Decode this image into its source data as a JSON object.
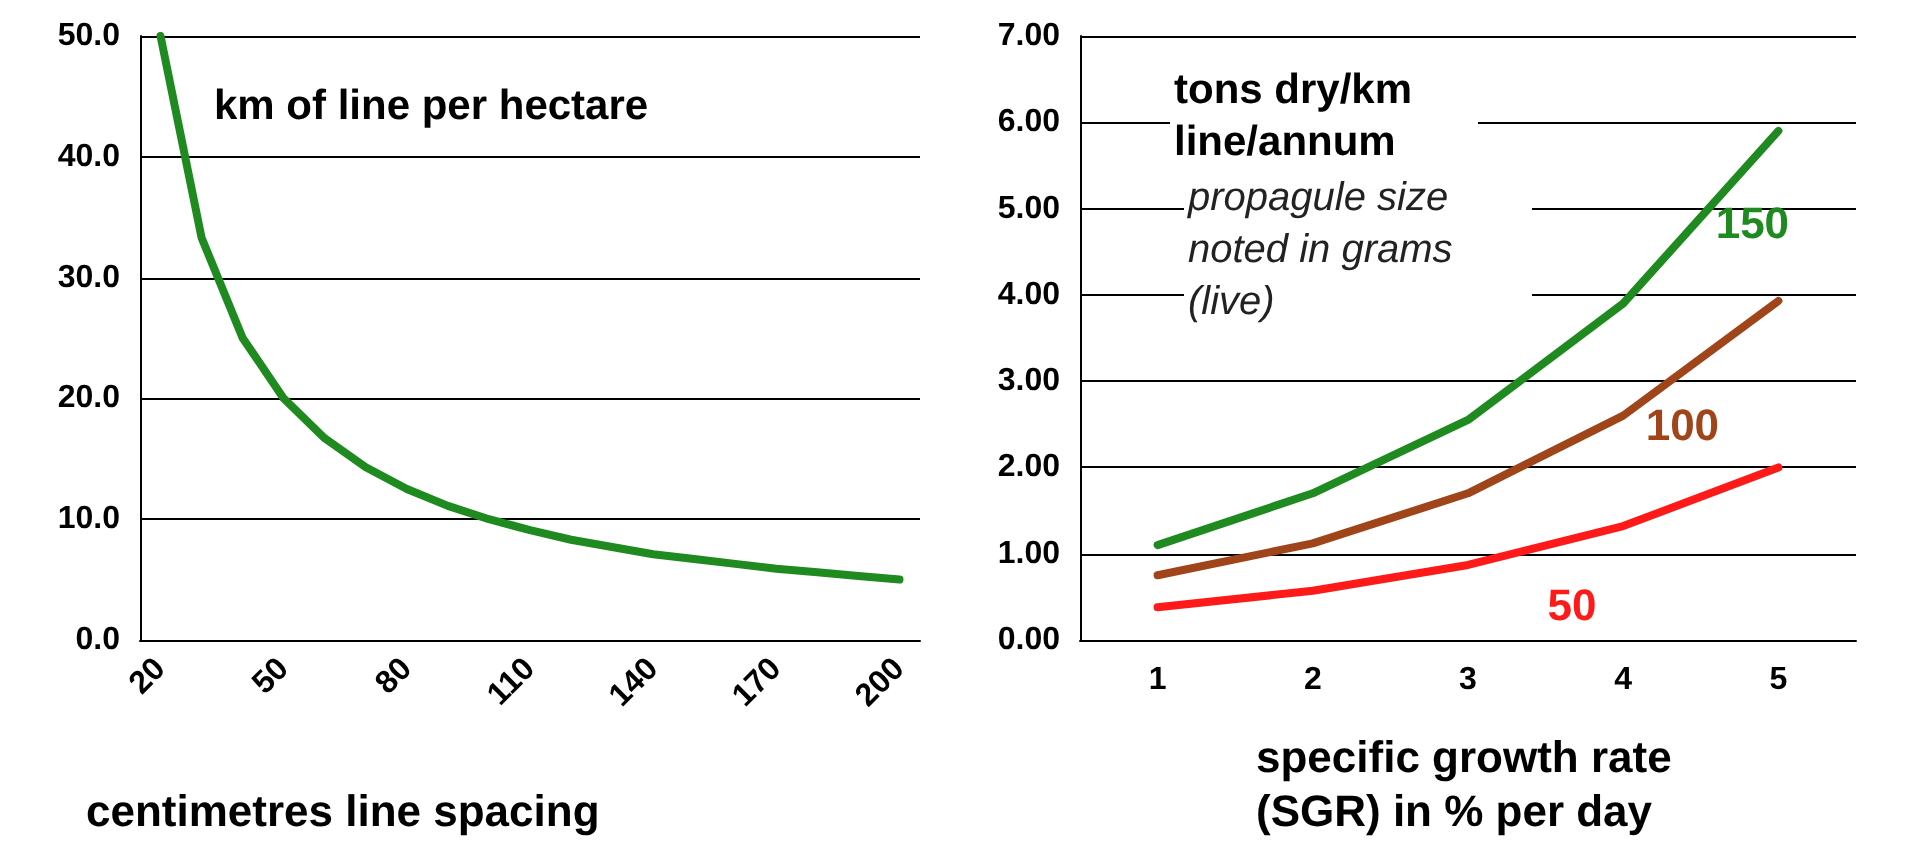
{
  "chart_data": [
    {
      "type": "line",
      "title": "km of line per hectare",
      "xlabel": "centimetres line spacing",
      "categories": [
        "20",
        null,
        null,
        "50",
        null,
        null,
        "80",
        null,
        null,
        "110",
        null,
        null,
        "140",
        null,
        null,
        "170",
        null,
        null,
        "200"
      ],
      "series": [
        {
          "color": "#1f8a1f",
          "values": [
            50,
            33.3,
            25,
            20,
            16.7,
            14.3,
            12.5,
            11.1,
            10,
            9.1,
            8.3,
            7.7,
            7.1,
            6.7,
            6.3,
            5.9,
            5.6,
            5.3,
            5
          ]
        }
      ],
      "ylim": [
        0,
        50
      ],
      "yticks": [
        {
          "value": 0,
          "label": "0.0"
        },
        {
          "value": 10,
          "label": "10.0"
        },
        {
          "value": 20,
          "label": "20.0"
        },
        {
          "value": 30,
          "label": "30.0"
        },
        {
          "value": 40,
          "label": "40.0"
        },
        {
          "value": 50,
          "label": "50.0"
        }
      ],
      "grid": "y",
      "marker": "none",
      "line_style": "solid"
    },
    {
      "type": "line",
      "title": "tons dry/km line/annum",
      "xlabel": "specific growth rate (SGR) in % per day",
      "annotations": [
        "propagule size noted in grams (live)"
      ],
      "categories": [
        "1",
        "2",
        "3",
        "4",
        "5"
      ],
      "series": [
        {
          "name": "150",
          "color": "#1f8a1f",
          "values": [
            1.1,
            1.7,
            2.55,
            3.9,
            5.9
          ]
        },
        {
          "name": "100",
          "color": "#a0441a",
          "values": [
            0.75,
            1.12,
            1.7,
            2.6,
            3.93
          ]
        },
        {
          "name": "50",
          "color": "#ff1a1a",
          "values": [
            0.38,
            0.57,
            0.87,
            1.32,
            2.0
          ]
        }
      ],
      "ylim": [
        0,
        7
      ],
      "yticks": [
        {
          "value": 0,
          "label": "0.00"
        },
        {
          "value": 1,
          "label": "1.00"
        },
        {
          "value": 2,
          "label": "2.00"
        },
        {
          "value": 3,
          "label": "3.00"
        },
        {
          "value": 4,
          "label": "4.00"
        },
        {
          "value": 5,
          "label": "5.00"
        },
        {
          "value": 6,
          "label": "6.00"
        },
        {
          "value": 7,
          "label": "7.00"
        }
      ],
      "grid": "y",
      "marker": "none",
      "line_style": "solid"
    }
  ]
}
